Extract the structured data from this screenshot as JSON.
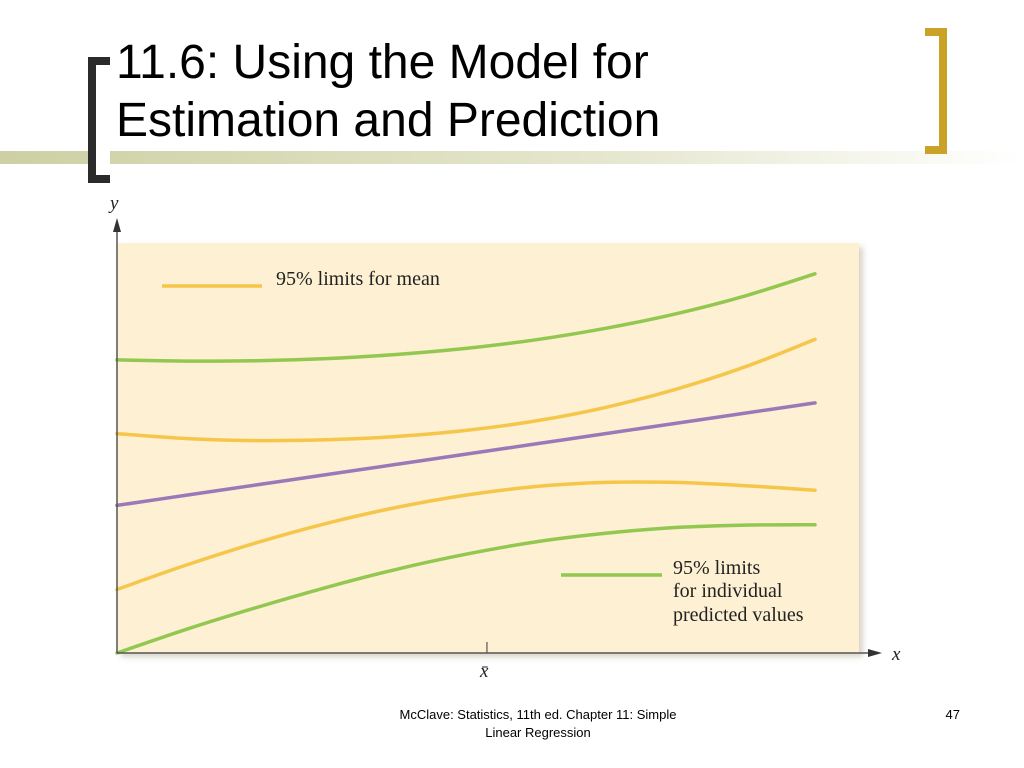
{
  "slide": {
    "title_line1": "11.6: Using the Model for",
    "title_line2": "Estimation and Prediction",
    "footer_line1": "McClave: Statistics, 11th ed. Chapter 11: Simple",
    "footer_line2": "Linear Regression",
    "page_number": "47"
  },
  "colors": {
    "accent_gold": "#c9a227",
    "bracket_dark": "#2b2b2b",
    "plot_bg": "#fdf0d3",
    "mean_limits": "#f5c64a",
    "prediction_limits": "#92c750",
    "regression_line": "#9b79b8",
    "axis": "#555555"
  },
  "chart_data": {
    "type": "line",
    "title": "",
    "xlabel": "x",
    "ylabel": "y",
    "x_tick_label": "x̄",
    "xlim": [
      0,
      100
    ],
    "ylim": [
      0,
      100
    ],
    "x_mean": 53,
    "grid": false,
    "x": [
      0,
      10,
      20,
      30,
      40,
      50,
      60,
      70,
      80,
      90,
      100
    ],
    "series": [
      {
        "key": "regression",
        "role": "regression_line",
        "values": [
          36,
          38.5,
          41,
          43.5,
          46,
          48.5,
          51,
          53.5,
          56,
          58.5,
          61
        ]
      },
      {
        "key": "mean_upper",
        "role": "mean_limits",
        "values": [
          53.5,
          52.3,
          51.8,
          52,
          52.8,
          54.3,
          56.6,
          59.9,
          64.3,
          69.8,
          76.5
        ]
      },
      {
        "key": "mean_lower",
        "role": "mean_limits",
        "values": [
          15.5,
          21.5,
          26.9,
          31.6,
          35.5,
          38.5,
          40.6,
          41.6,
          41.6,
          40.8,
          39.7
        ]
      },
      {
        "key": "pred_upper",
        "role": "prediction_limits",
        "values": [
          71.5,
          71.2,
          71.3,
          71.8,
          72.8,
          74.3,
          76.4,
          79.2,
          82.7,
          87.1,
          92.5
        ]
      },
      {
        "key": "pred_lower",
        "role": "prediction_limits",
        "values": [
          0,
          5.8,
          11.1,
          16,
          20.4,
          24.1,
          27.1,
          29.2,
          30.6,
          31.2,
          31.3
        ]
      }
    ],
    "legend": [
      {
        "label": "95% limits for mean",
        "role": "mean_limits"
      },
      {
        "label_lines": [
          "95% limits",
          "for individual",
          "predicted values"
        ],
        "role": "prediction_limits"
      }
    ]
  }
}
